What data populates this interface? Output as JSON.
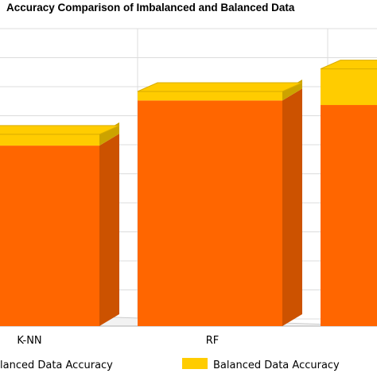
{
  "title": "Accuracy Comparison of Imbalanced and Balanced Data",
  "chart_data": {
    "type": "bar",
    "stacked": true,
    "categories": [
      "K-NN",
      "RF",
      ""
    ],
    "series": [
      {
        "name": "Imbalanced Data Accuracy",
        "color": "#ff6600",
        "values": [
          80,
          100,
          98
        ]
      },
      {
        "name": "Balanced Data Accuracy",
        "color": "#ffcc00",
        "values": [
          5,
          4,
          16
        ]
      }
    ],
    "legend_labels": [
      "lanced Data Accuracy",
      "Balanced Data Accuracy"
    ],
    "grid": true,
    "legend": "bottom"
  }
}
